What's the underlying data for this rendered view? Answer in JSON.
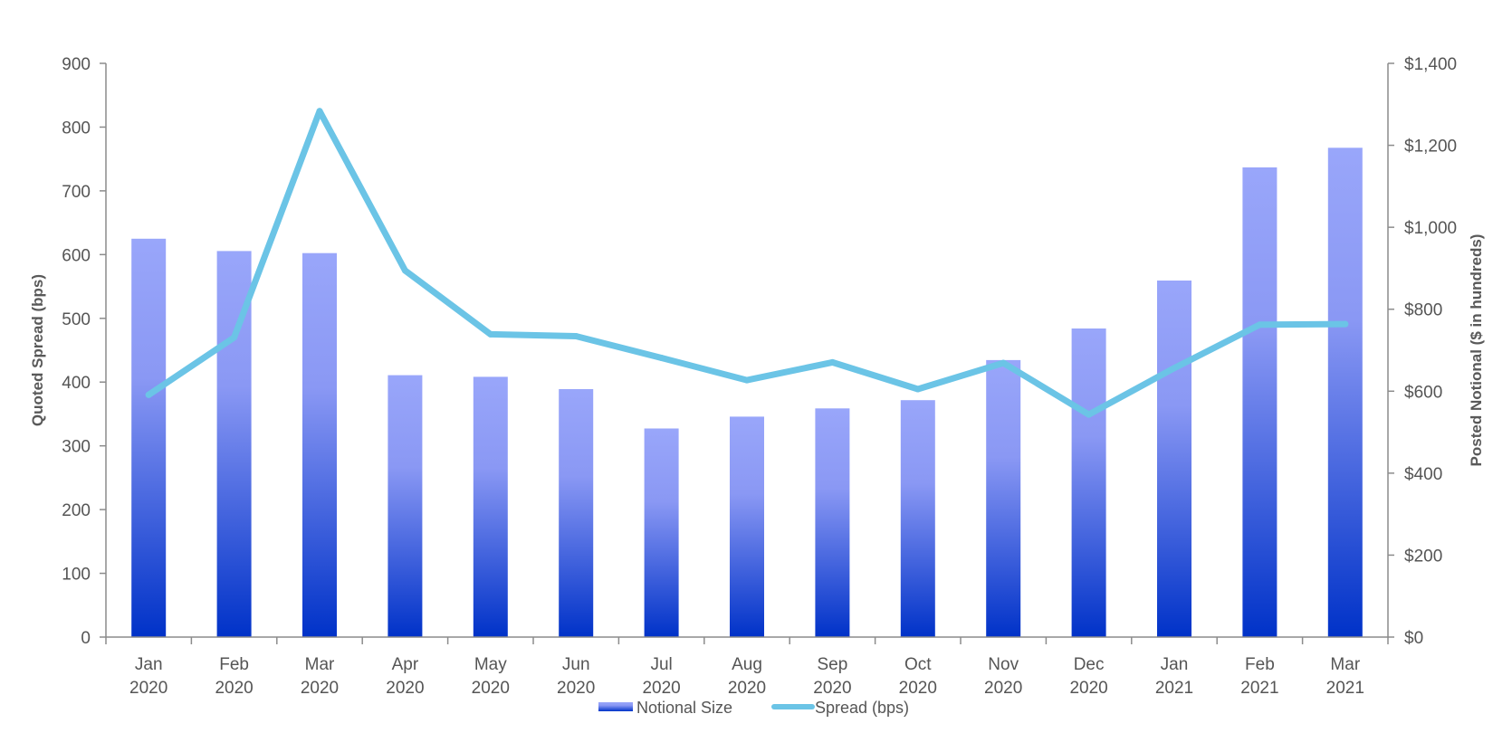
{
  "chart_data": {
    "type": "bar",
    "categories": [
      [
        "Jan",
        "2020"
      ],
      [
        "Feb",
        "2020"
      ],
      [
        "Mar",
        "2020"
      ],
      [
        "Apr",
        "2020"
      ],
      [
        "May",
        "2020"
      ],
      [
        "Jun",
        "2020"
      ],
      [
        "Jul",
        "2020"
      ],
      [
        "Aug",
        "2020"
      ],
      [
        "Sep",
        "2020"
      ],
      [
        "Oct",
        "2020"
      ],
      [
        "Nov",
        "2020"
      ],
      [
        "Dec",
        "2020"
      ],
      [
        "Jan",
        "2021"
      ],
      [
        "Feb",
        "2021"
      ],
      [
        "Mar",
        "2021"
      ]
    ],
    "series": [
      {
        "name": "Notional Size",
        "type": "bar",
        "axis": "right",
        "values": [
          972,
          942,
          937,
          639,
          635,
          605,
          509,
          538,
          558,
          578,
          676,
          753,
          870,
          1146,
          1194
        ]
      },
      {
        "name": "Spread (bps)",
        "type": "line",
        "axis": "left",
        "values": [
          380,
          470,
          825,
          575,
          475,
          472,
          438,
          403,
          431,
          389,
          430,
          349,
          422,
          490,
          491
        ]
      }
    ],
    "y_left": {
      "label": "Quoted Spread (bps)",
      "range": [
        0,
        900
      ],
      "ticks": [
        "0",
        "100",
        "200",
        "300",
        "400",
        "500",
        "600",
        "700",
        "800",
        "900"
      ]
    },
    "y_right": {
      "label": "Posted Notional ($ in hundreds)",
      "range": [
        0,
        1400
      ],
      "ticks": [
        "$0",
        "$200",
        "$400",
        "$600",
        "$800",
        "$1,000",
        "$1,200",
        "$1,400"
      ]
    },
    "grid": false,
    "legend_position": "bottom-center",
    "colors": {
      "bar_top": "#99a6fa",
      "bar_bottom": "#0032c8",
      "line": "#6bc4e6",
      "axis": "#8c8c8c",
      "text": "#555555"
    }
  }
}
